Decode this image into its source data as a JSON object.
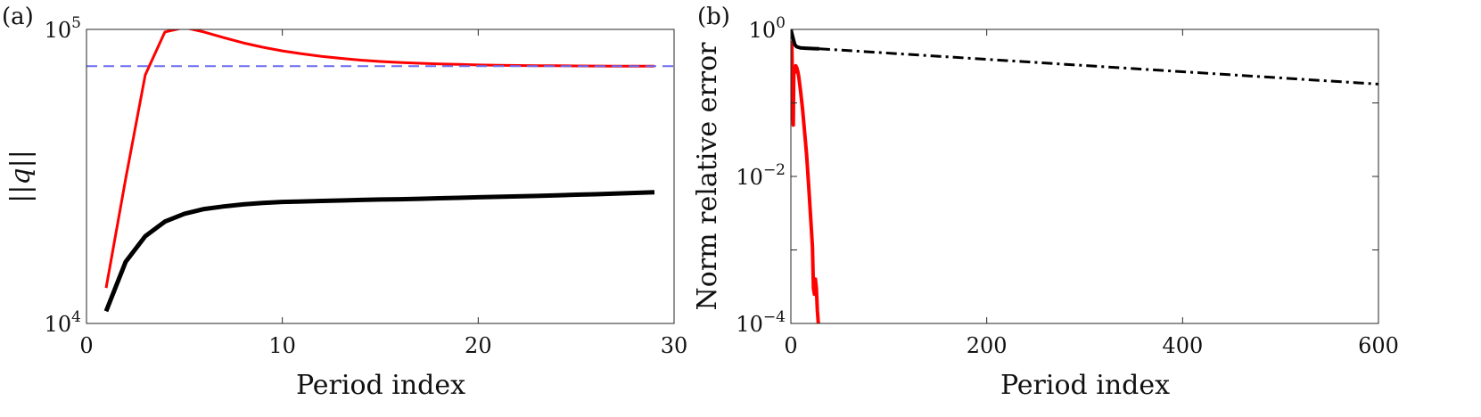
{
  "chart_data": [
    {
      "panel_label": "(a)",
      "type": "line",
      "xlabel": "Period index",
      "ylabel": "||q||",
      "xlim": [
        0,
        30
      ],
      "ylim": [
        10000,
        100000
      ],
      "yscale": "log",
      "xticks": [
        {
          "value": 0,
          "label": "0"
        },
        {
          "value": 10,
          "label": "10"
        },
        {
          "value": 20,
          "label": "20"
        },
        {
          "value": 30,
          "label": "30"
        }
      ],
      "yticks": [
        {
          "value": 10000,
          "base": "10",
          "exp": "4"
        },
        {
          "value": 100000,
          "base": "10",
          "exp": "5"
        }
      ],
      "grid": false,
      "series": [
        {
          "color": "#ff0000",
          "style": "solid",
          "width": 3,
          "x": [
            1,
            2,
            3,
            4,
            5,
            6,
            7,
            8,
            9,
            10,
            11,
            12,
            13,
            14,
            15,
            16,
            17,
            18,
            19,
            20,
            21,
            22,
            23,
            24,
            25,
            26,
            27,
            28,
            29
          ],
          "y": [
            13200,
            31000,
            70000,
            98000,
            101500,
            98000,
            93800,
            90000,
            87000,
            84500,
            82600,
            81000,
            79700,
            78600,
            77800,
            77200,
            76700,
            76300,
            76000,
            75700,
            75500,
            75400,
            75300,
            75200,
            75100,
            75050,
            75000,
            75000,
            75000
          ]
        },
        {
          "color": "#000000",
          "style": "solid",
          "width": 5,
          "x": [
            1,
            2,
            3,
            4,
            5,
            6,
            7,
            8,
            9,
            10,
            11,
            12,
            13,
            14,
            15,
            16,
            17,
            18,
            19,
            20,
            21,
            22,
            23,
            24,
            25,
            26,
            27,
            28,
            29
          ],
          "y": [
            11000,
            16200,
            19800,
            22200,
            23600,
            24500,
            25000,
            25400,
            25700,
            25900,
            26000,
            26100,
            26200,
            26300,
            26400,
            26450,
            26550,
            26650,
            26750,
            26850,
            26950,
            27050,
            27150,
            27250,
            27400,
            27500,
            27650,
            27800,
            27950
          ]
        },
        {
          "color": "#6c6cf0",
          "style": "dashed",
          "width": 2,
          "x": [
            0,
            30
          ],
          "y": [
            75000,
            75000
          ]
        }
      ]
    },
    {
      "panel_label": "(b)",
      "type": "line",
      "xlabel": "Period index",
      "ylabel": "Norm relative error",
      "xlim": [
        0,
        600
      ],
      "ylim": [
        0.0001,
        1
      ],
      "yscale": "log",
      "xticks": [
        {
          "value": 0,
          "label": "0"
        },
        {
          "value": 200,
          "label": "200"
        },
        {
          "value": 400,
          "label": "400"
        },
        {
          "value": 600,
          "label": "600"
        }
      ],
      "yticks": [
        {
          "value": 0.0001,
          "base": "10",
          "exp": "−4"
        },
        {
          "value": 0.01,
          "base": "10",
          "exp": "−2"
        },
        {
          "value": 1,
          "base": "10",
          "exp": "0"
        }
      ],
      "minor_yticks": [
        0.001,
        0.1
      ],
      "grid": false,
      "series": [
        {
          "color": "#ff0000",
          "style": "solid",
          "width": 4,
          "x": [
            0,
            1,
            2,
            2.5,
            3,
            4,
            5,
            6,
            7,
            8,
            10,
            12,
            14,
            16,
            18,
            20,
            22,
            23,
            24,
            25,
            26,
            27,
            28
          ],
          "y": [
            0.7,
            0.6,
            0.08,
            0.05,
            0.3,
            0.26,
            0.32,
            0.3,
            0.27,
            0.23,
            0.14,
            0.08,
            0.04,
            0.02,
            0.008,
            0.003,
            0.0011,
            0.0003,
            0.00025,
            0.0004,
            0.0003,
            0.00015,
            0.0001
          ]
        },
        {
          "color": "#000000",
          "style": "solid",
          "width": 4,
          "x": [
            0,
            2,
            4,
            6,
            10,
            15,
            20,
            25,
            29
          ],
          "y": [
            1.0,
            0.78,
            0.62,
            0.58,
            0.56,
            0.555,
            0.55,
            0.547,
            0.545
          ]
        },
        {
          "color": "#000000",
          "style": "dashdot",
          "width": 3,
          "x": [
            29,
            600
          ],
          "y": [
            0.545,
            0.18
          ]
        }
      ]
    }
  ]
}
